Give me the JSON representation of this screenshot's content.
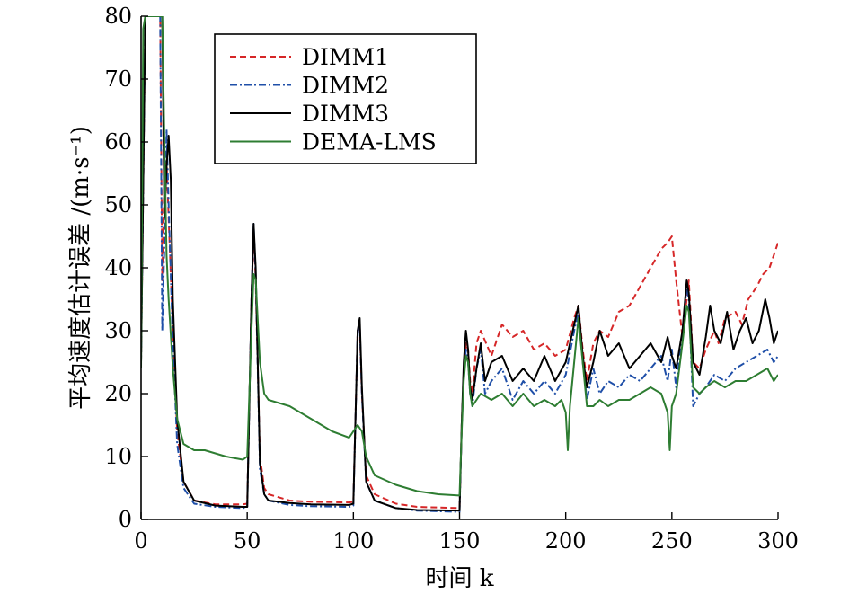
{
  "chart_data": {
    "type": "line",
    "xlabel": "时间 k",
    "ylabel": "平均速度估计误差 /(m·s⁻¹)",
    "xlim": [
      0,
      300
    ],
    "ylim": [
      0,
      80
    ],
    "xticks": [
      0,
      50,
      100,
      150,
      200,
      250,
      300
    ],
    "yticks": [
      0,
      10,
      20,
      30,
      40,
      50,
      60,
      70,
      80
    ],
    "grid": false,
    "legend_position": "top-left",
    "series": [
      {
        "name": "DIMM1",
        "color": "#d62728",
        "dash": "dashed",
        "points": [
          [
            0,
            25
          ],
          [
            2,
            80
          ],
          [
            9,
            80
          ],
          [
            10,
            38
          ],
          [
            11,
            54
          ],
          [
            12,
            57
          ],
          [
            13,
            48
          ],
          [
            15,
            30
          ],
          [
            17,
            14
          ],
          [
            20,
            6
          ],
          [
            25,
            3
          ],
          [
            35,
            2.4
          ],
          [
            48,
            2.4
          ],
          [
            50,
            2.5
          ],
          [
            52,
            35
          ],
          [
            53,
            46
          ],
          [
            54,
            38
          ],
          [
            56,
            10
          ],
          [
            58,
            5
          ],
          [
            60,
            4
          ],
          [
            70,
            3
          ],
          [
            80,
            2.8
          ],
          [
            98,
            2.7
          ],
          [
            100,
            2.8
          ],
          [
            102,
            30
          ],
          [
            103,
            31
          ],
          [
            104,
            20
          ],
          [
            106,
            7
          ],
          [
            110,
            4
          ],
          [
            120,
            2.5
          ],
          [
            130,
            2
          ],
          [
            150,
            1.8
          ],
          [
            151,
            15
          ],
          [
            152,
            24
          ],
          [
            153,
            28
          ],
          [
            154,
            27
          ],
          [
            155,
            22
          ],
          [
            156,
            20
          ],
          [
            158,
            28
          ],
          [
            160,
            30
          ],
          [
            165,
            26
          ],
          [
            170,
            31
          ],
          [
            175,
            29
          ],
          [
            180,
            30
          ],
          [
            185,
            27
          ],
          [
            190,
            28
          ],
          [
            195,
            26
          ],
          [
            200,
            27
          ],
          [
            204,
            32
          ],
          [
            206,
            34
          ],
          [
            208,
            27
          ],
          [
            210,
            22
          ],
          [
            213,
            28
          ],
          [
            216,
            30
          ],
          [
            220,
            29
          ],
          [
            225,
            33
          ],
          [
            230,
            34
          ],
          [
            235,
            37
          ],
          [
            240,
            40
          ],
          [
            245,
            43
          ],
          [
            248,
            44
          ],
          [
            250,
            45
          ],
          [
            252,
            38
          ],
          [
            255,
            29
          ],
          [
            258,
            38
          ],
          [
            260,
            25
          ],
          [
            263,
            24
          ],
          [
            266,
            27
          ],
          [
            270,
            30
          ],
          [
            272,
            28
          ],
          [
            275,
            32
          ],
          [
            280,
            33
          ],
          [
            283,
            31
          ],
          [
            286,
            35
          ],
          [
            290,
            37
          ],
          [
            293,
            39
          ],
          [
            296,
            40
          ],
          [
            298,
            42
          ],
          [
            300,
            44
          ]
        ]
      },
      {
        "name": "DIMM2",
        "color": "#1f4fa8",
        "dash": "dashdot",
        "points": [
          [
            0,
            25
          ],
          [
            2,
            80
          ],
          [
            9,
            80
          ],
          [
            10,
            30
          ],
          [
            11,
            44
          ],
          [
            12,
            62
          ],
          [
            13,
            50
          ],
          [
            15,
            28
          ],
          [
            17,
            12
          ],
          [
            20,
            5
          ],
          [
            25,
            2.5
          ],
          [
            35,
            2
          ],
          [
            48,
            1.8
          ],
          [
            50,
            2
          ],
          [
            52,
            35
          ],
          [
            53,
            47
          ],
          [
            54,
            39
          ],
          [
            56,
            8
          ],
          [
            58,
            4
          ],
          [
            60,
            3
          ],
          [
            70,
            2.3
          ],
          [
            80,
            2.1
          ],
          [
            98,
            2
          ],
          [
            100,
            2.2
          ],
          [
            102,
            30
          ],
          [
            103,
            31
          ],
          [
            104,
            20
          ],
          [
            106,
            6
          ],
          [
            110,
            3
          ],
          [
            120,
            1.8
          ],
          [
            130,
            1.4
          ],
          [
            150,
            1.2
          ],
          [
            151,
            15
          ],
          [
            152,
            23
          ],
          [
            153,
            27
          ],
          [
            154,
            25
          ],
          [
            155,
            20
          ],
          [
            156,
            18
          ],
          [
            158,
            24
          ],
          [
            160,
            27
          ],
          [
            162,
            20
          ],
          [
            165,
            22
          ],
          [
            170,
            24
          ],
          [
            175,
            19
          ],
          [
            180,
            22
          ],
          [
            185,
            20
          ],
          [
            190,
            22
          ],
          [
            195,
            20
          ],
          [
            200,
            23
          ],
          [
            204,
            30
          ],
          [
            206,
            33
          ],
          [
            208,
            25
          ],
          [
            210,
            19
          ],
          [
            213,
            24
          ],
          [
            216,
            20
          ],
          [
            220,
            22
          ],
          [
            225,
            21
          ],
          [
            230,
            23
          ],
          [
            235,
            22
          ],
          [
            240,
            24
          ],
          [
            245,
            26
          ],
          [
            248,
            22
          ],
          [
            250,
            27
          ],
          [
            252,
            21
          ],
          [
            255,
            30
          ],
          [
            257,
            37
          ],
          [
            258,
            35
          ],
          [
            260,
            18
          ],
          [
            263,
            20
          ],
          [
            266,
            21
          ],
          [
            270,
            23
          ],
          [
            275,
            22
          ],
          [
            280,
            24
          ],
          [
            285,
            25
          ],
          [
            290,
            26
          ],
          [
            295,
            27
          ],
          [
            298,
            25
          ],
          [
            300,
            26
          ]
        ]
      },
      {
        "name": "DIMM3",
        "color": "#000000",
        "dash": "solid",
        "points": [
          [
            0,
            25
          ],
          [
            2,
            80
          ],
          [
            9,
            80
          ],
          [
            10,
            80
          ],
          [
            11,
            48
          ],
          [
            12,
            56
          ],
          [
            13,
            61
          ],
          [
            14,
            54
          ],
          [
            15,
            35
          ],
          [
            17,
            16
          ],
          [
            20,
            6
          ],
          [
            25,
            3
          ],
          [
            35,
            2.2
          ],
          [
            48,
            2
          ],
          [
            50,
            2
          ],
          [
            52,
            35
          ],
          [
            53,
            47
          ],
          [
            54,
            40
          ],
          [
            56,
            9
          ],
          [
            58,
            4
          ],
          [
            60,
            3
          ],
          [
            70,
            2.6
          ],
          [
            80,
            2.4
          ],
          [
            98,
            2.3
          ],
          [
            100,
            2.5
          ],
          [
            102,
            30
          ],
          [
            103,
            32
          ],
          [
            104,
            21
          ],
          [
            106,
            6
          ],
          [
            110,
            3
          ],
          [
            120,
            1.8
          ],
          [
            130,
            1.5
          ],
          [
            150,
            1.4
          ],
          [
            151,
            15
          ],
          [
            152,
            25
          ],
          [
            153,
            30
          ],
          [
            154,
            27
          ],
          [
            155,
            21
          ],
          [
            156,
            19
          ],
          [
            158,
            24
          ],
          [
            160,
            28
          ],
          [
            162,
            22
          ],
          [
            165,
            25
          ],
          [
            170,
            26
          ],
          [
            175,
            22
          ],
          [
            180,
            24
          ],
          [
            185,
            22
          ],
          [
            190,
            26
          ],
          [
            195,
            22
          ],
          [
            200,
            25
          ],
          [
            204,
            31
          ],
          [
            206,
            34
          ],
          [
            208,
            26
          ],
          [
            210,
            21
          ],
          [
            213,
            25
          ],
          [
            216,
            30
          ],
          [
            220,
            26
          ],
          [
            225,
            28
          ],
          [
            230,
            24
          ],
          [
            235,
            26
          ],
          [
            240,
            28
          ],
          [
            245,
            25
          ],
          [
            248,
            29
          ],
          [
            250,
            26
          ],
          [
            252,
            24
          ],
          [
            255,
            30
          ],
          [
            257,
            38
          ],
          [
            258,
            36
          ],
          [
            260,
            25
          ],
          [
            263,
            23
          ],
          [
            266,
            29
          ],
          [
            268,
            34
          ],
          [
            270,
            30
          ],
          [
            273,
            28
          ],
          [
            276,
            33
          ],
          [
            279,
            27
          ],
          [
            282,
            30
          ],
          [
            285,
            32
          ],
          [
            288,
            28
          ],
          [
            291,
            30
          ],
          [
            294,
            35
          ],
          [
            296,
            32
          ],
          [
            298,
            28
          ],
          [
            300,
            30
          ]
        ]
      },
      {
        "name": "DEMA-LMS",
        "color": "#2e7d32",
        "dash": "solid",
        "points": [
          [
            0,
            24
          ],
          [
            1,
            78
          ],
          [
            2,
            80
          ],
          [
            9,
            80
          ],
          [
            10,
            80
          ],
          [
            11,
            60
          ],
          [
            12,
            42
          ],
          [
            13,
            35
          ],
          [
            15,
            24
          ],
          [
            17,
            16
          ],
          [
            20,
            12
          ],
          [
            25,
            11
          ],
          [
            30,
            11
          ],
          [
            35,
            10.5
          ],
          [
            40,
            10
          ],
          [
            48,
            9.5
          ],
          [
            50,
            10
          ],
          [
            52,
            30
          ],
          [
            53,
            39
          ],
          [
            54,
            38
          ],
          [
            56,
            25
          ],
          [
            58,
            20
          ],
          [
            60,
            19
          ],
          [
            70,
            18
          ],
          [
            80,
            16
          ],
          [
            90,
            14
          ],
          [
            98,
            13
          ],
          [
            100,
            14
          ],
          [
            102,
            15
          ],
          [
            104,
            14
          ],
          [
            106,
            10
          ],
          [
            110,
            7
          ],
          [
            120,
            5.5
          ],
          [
            130,
            4.5
          ],
          [
            140,
            4
          ],
          [
            150,
            3.8
          ],
          [
            151,
            14
          ],
          [
            152,
            22
          ],
          [
            153,
            26
          ],
          [
            154,
            25
          ],
          [
            155,
            20
          ],
          [
            156,
            18
          ],
          [
            160,
            20
          ],
          [
            165,
            19
          ],
          [
            170,
            20
          ],
          [
            175,
            18
          ],
          [
            180,
            20
          ],
          [
            185,
            18
          ],
          [
            190,
            19
          ],
          [
            195,
            18
          ],
          [
            198,
            19
          ],
          [
            200,
            17
          ],
          [
            201,
            11
          ],
          [
            202,
            18
          ],
          [
            204,
            25
          ],
          [
            206,
            32
          ],
          [
            208,
            25
          ],
          [
            210,
            18
          ],
          [
            213,
            18
          ],
          [
            216,
            19
          ],
          [
            220,
            18
          ],
          [
            225,
            19
          ],
          [
            230,
            19
          ],
          [
            235,
            20
          ],
          [
            240,
            21
          ],
          [
            245,
            20
          ],
          [
            248,
            17
          ],
          [
            249,
            11
          ],
          [
            250,
            18
          ],
          [
            252,
            20
          ],
          [
            255,
            28
          ],
          [
            257,
            34
          ],
          [
            258,
            33
          ],
          [
            260,
            21
          ],
          [
            263,
            20
          ],
          [
            266,
            21
          ],
          [
            270,
            22
          ],
          [
            275,
            21
          ],
          [
            280,
            22
          ],
          [
            285,
            22
          ],
          [
            290,
            23
          ],
          [
            295,
            24
          ],
          [
            298,
            22
          ],
          [
            300,
            23
          ]
        ]
      }
    ]
  }
}
